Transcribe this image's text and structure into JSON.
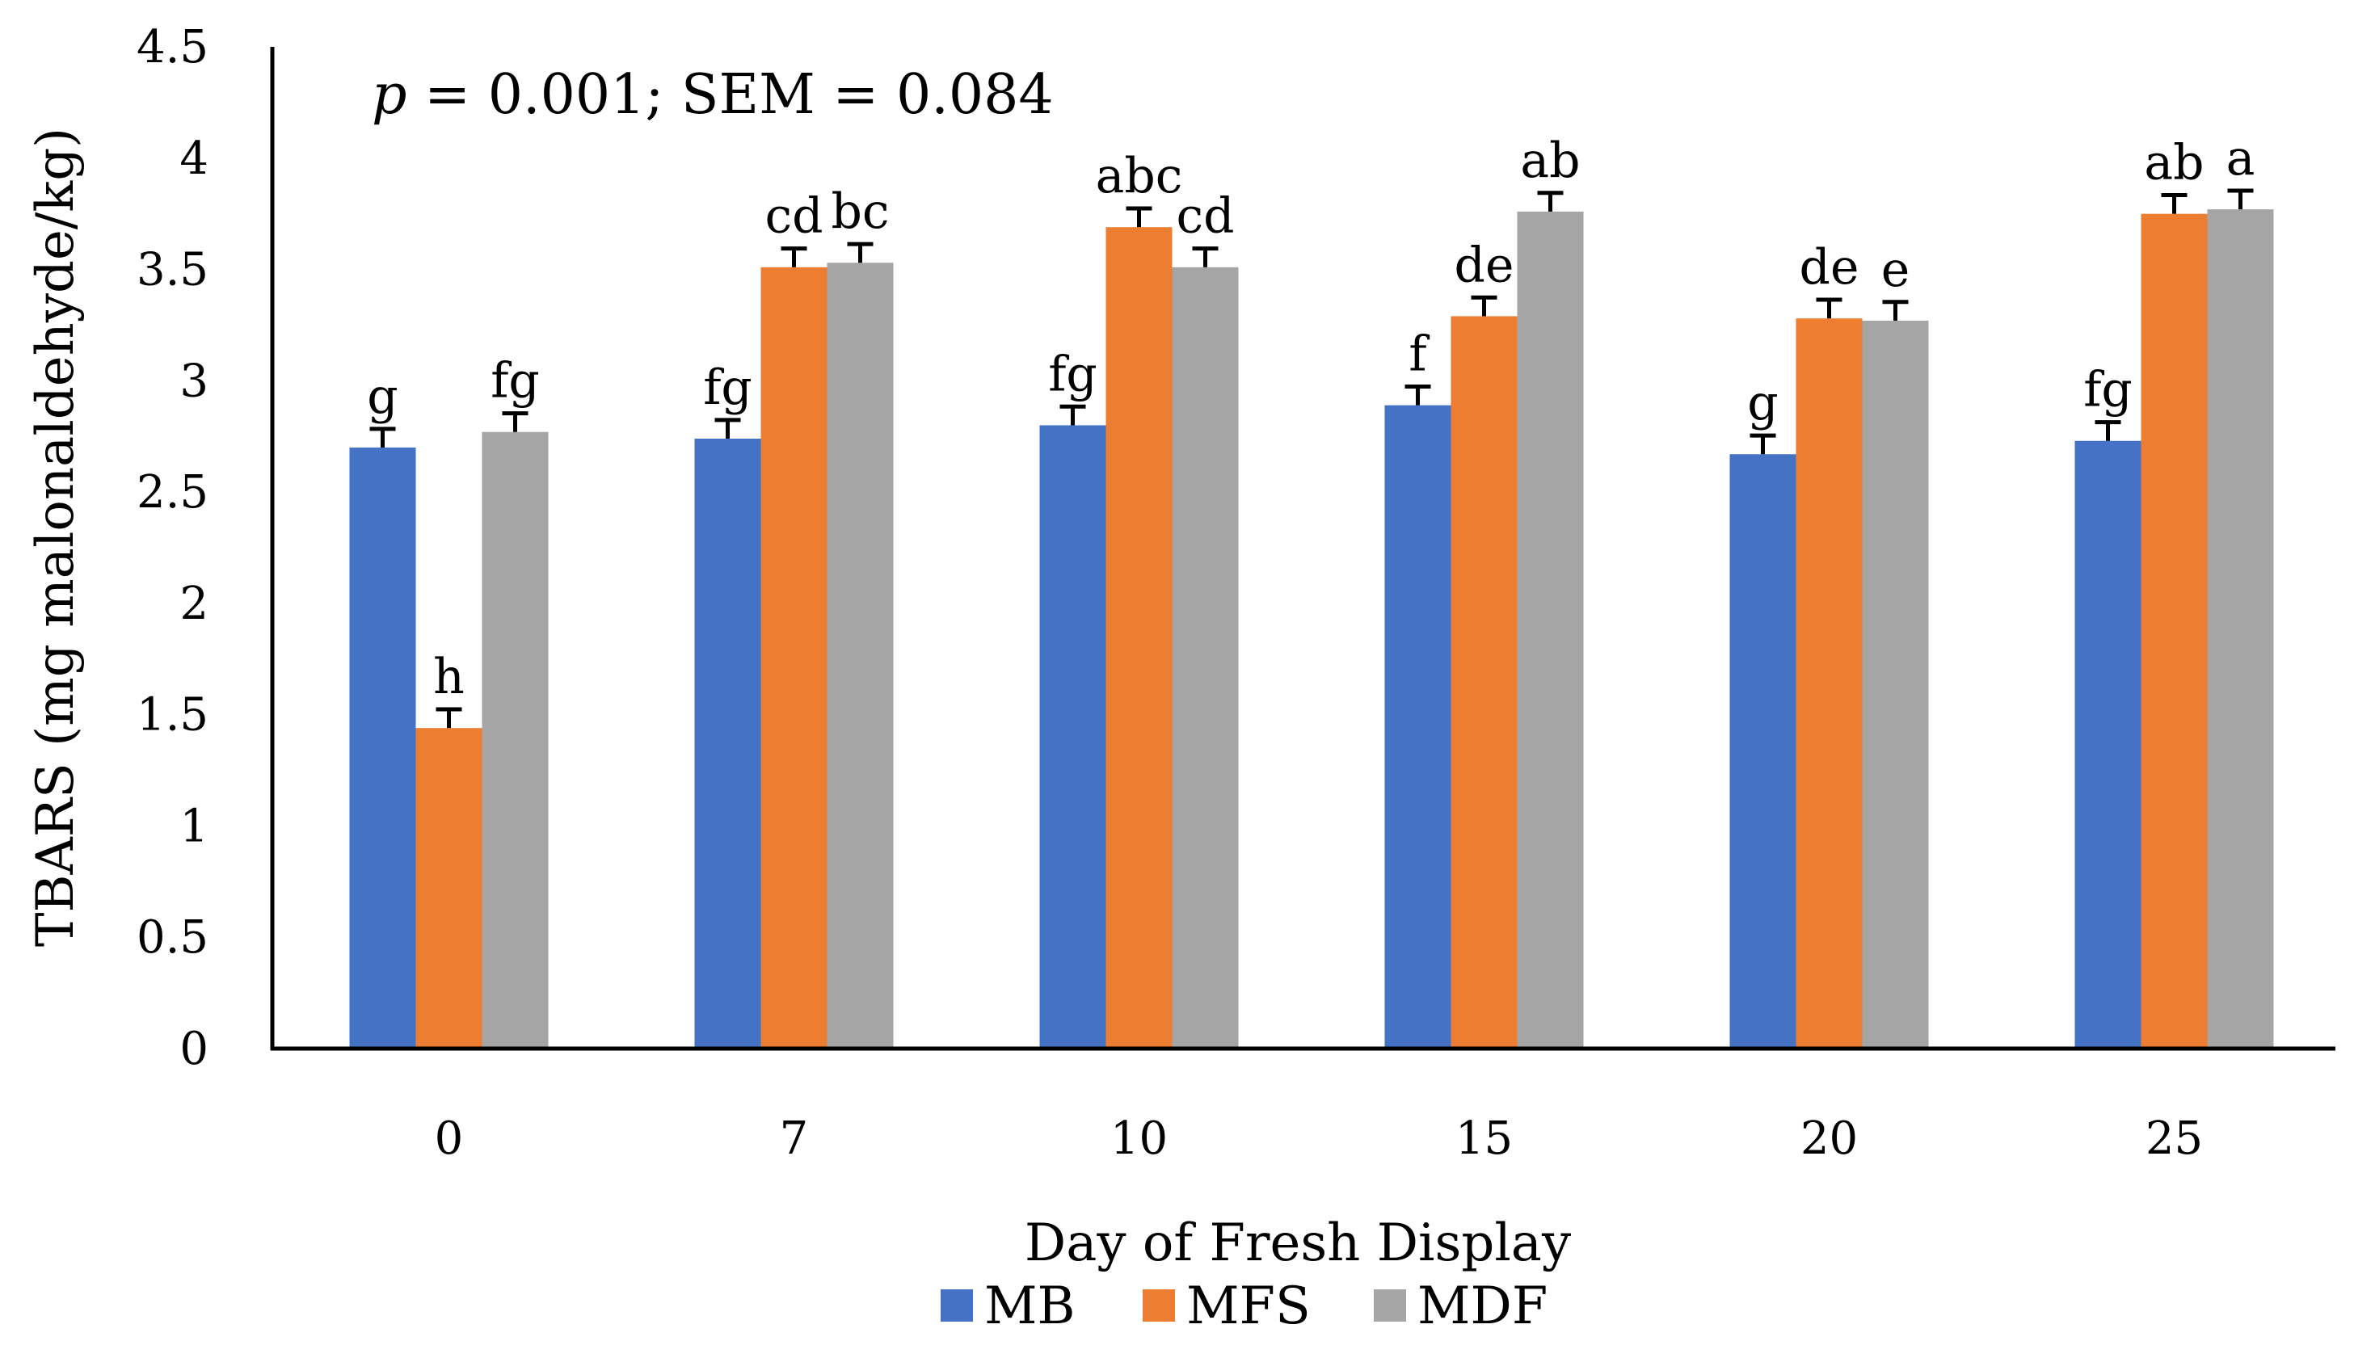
{
  "chart_data": {
    "type": "bar",
    "title": "",
    "stat_note": {
      "p_symbol": "p",
      "rest": " = 0.001; SEM = 0.084"
    },
    "xlabel": "Day of Fresh Display",
    "ylabel": "TBARS (mg malonaldehyde/kg)",
    "ylim": [
      0,
      4.5
    ],
    "yticks": [
      0,
      0.5,
      1,
      1.5,
      2,
      2.5,
      3,
      3.5,
      4,
      4.5
    ],
    "ytick_labels": [
      "0",
      "0.5",
      "1",
      "1.5",
      "2",
      "2.5",
      "3",
      "3.5",
      "4",
      "4.5"
    ],
    "categories": [
      "0",
      "7",
      "10",
      "15",
      "20",
      "25"
    ],
    "error_bar": 0.084,
    "legend_position": "bottom-center",
    "series": [
      {
        "name": "MB",
        "color": "#4472C4",
        "values": [
          2.7,
          2.74,
          2.8,
          2.89,
          2.67,
          2.73
        ],
        "letters": [
          "g",
          "fg",
          "fg",
          "f",
          "g",
          "fg"
        ]
      },
      {
        "name": "MFS",
        "color": "#ED7D31",
        "values": [
          1.44,
          3.51,
          3.69,
          3.29,
          3.28,
          3.75
        ],
        "letters": [
          "h",
          "cd",
          "abc",
          "de",
          "de",
          "ab"
        ]
      },
      {
        "name": "MDF",
        "color": "#A5A5A5",
        "values": [
          2.77,
          3.53,
          3.51,
          3.76,
          3.27,
          3.77
        ],
        "letters": [
          "fg",
          "bc",
          "cd",
          "ab",
          "e",
          "a"
        ]
      }
    ]
  }
}
